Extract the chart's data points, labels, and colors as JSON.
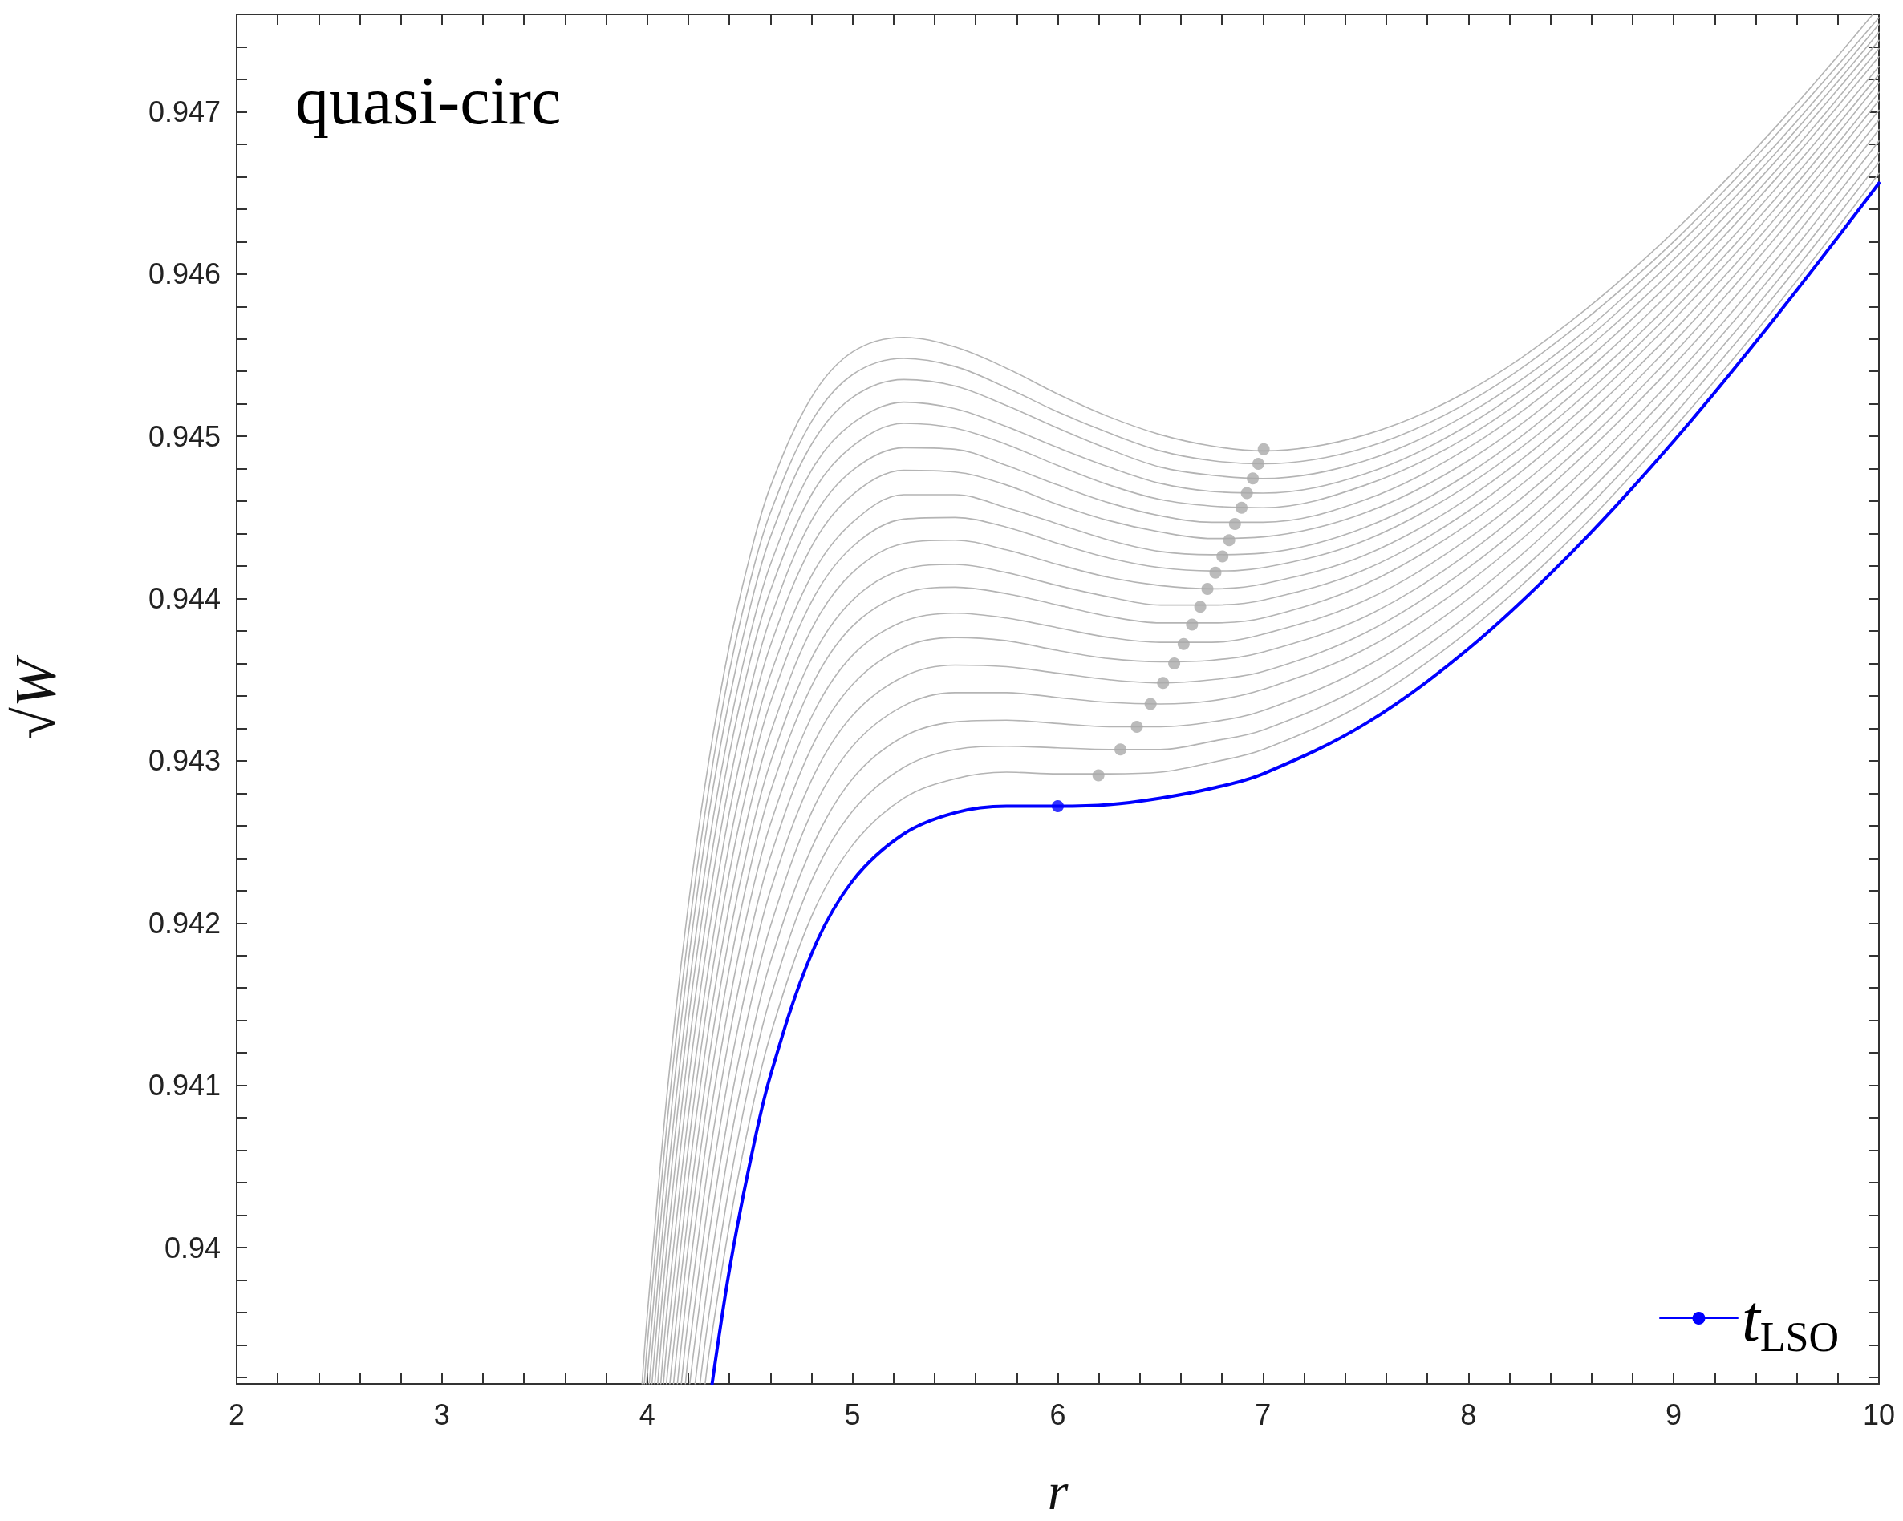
{
  "chart_data": {
    "type": "line",
    "title": "quasi-circ",
    "xlabel": "r",
    "ylabel": "√W",
    "grid": false,
    "legend": "bottom right",
    "marker": "none",
    "line_style": "solid",
    "xlim": [
      2,
      10
    ],
    "xticks": [
      2,
      {
        "value": 2.2,
        "label": null
      },
      {
        "value": 2.4,
        "label": null
      },
      {
        "value": 2.6,
        "label": null
      },
      {
        "value": 2.8,
        "label": null
      },
      3,
      {
        "value": 3.2,
        "label": null
      },
      {
        "value": 3.4,
        "label": null
      },
      {
        "value": 3.6,
        "label": null
      },
      {
        "value": 3.8,
        "label": null
      },
      4,
      {
        "value": 4.2,
        "label": null
      },
      {
        "value": 4.4,
        "label": null
      },
      {
        "value": 4.6,
        "label": null
      },
      {
        "value": 4.8,
        "label": null
      },
      5,
      {
        "value": 5.2,
        "label": null
      },
      {
        "value": 5.4,
        "label": null
      },
      {
        "value": 5.6,
        "label": null
      },
      {
        "value": 5.8,
        "label": null
      },
      6,
      {
        "value": 6.2,
        "label": null
      },
      {
        "value": 6.4,
        "label": null
      },
      {
        "value": 6.6,
        "label": null
      },
      {
        "value": 6.8,
        "label": null
      },
      7,
      {
        "value": 7.2,
        "label": null
      },
      {
        "value": 7.4,
        "label": null
      },
      {
        "value": 7.6,
        "label": null
      },
      {
        "value": 7.8,
        "label": null
      },
      8,
      {
        "value": 8.2,
        "label": null
      },
      {
        "value": 8.4,
        "label": null
      },
      {
        "value": 8.6,
        "label": null
      },
      {
        "value": 8.8,
        "label": null
      },
      9,
      {
        "value": 9.2,
        "label": null
      },
      {
        "value": 9.4,
        "label": null
      },
      {
        "value": 9.6,
        "label": null
      },
      {
        "value": 9.8,
        "label": null
      },
      10
    ],
    "ylim": [
      0.93916,
      0.9476
    ],
    "yticks": [
      {
        "value": 0.9392,
        "label": null
      },
      {
        "value": 0.9394,
        "label": null
      },
      {
        "value": 0.9396,
        "label": null
      },
      {
        "value": 0.9398,
        "label": null
      },
      0.94,
      {
        "value": 0.9402,
        "label": null
      },
      {
        "value": 0.9404,
        "label": null
      },
      {
        "value": 0.9406,
        "label": null
      },
      {
        "value": 0.9408,
        "label": null
      },
      0.941,
      {
        "value": 0.9412,
        "label": null
      },
      {
        "value": 0.9414,
        "label": null
      },
      {
        "value": 0.9416,
        "label": null
      },
      {
        "value": 0.9418,
        "label": null
      },
      0.942,
      {
        "value": 0.9422,
        "label": null
      },
      {
        "value": 0.9424,
        "label": null
      },
      {
        "value": 0.9426,
        "label": null
      },
      {
        "value": 0.9428,
        "label": null
      },
      0.943,
      {
        "value": 0.9432,
        "label": null
      },
      {
        "value": 0.9434,
        "label": null
      },
      {
        "value": 0.9436,
        "label": null
      },
      {
        "value": 0.9438,
        "label": null
      },
      0.944,
      {
        "value": 0.9442,
        "label": null
      },
      {
        "value": 0.9444,
        "label": null
      },
      {
        "value": 0.9446,
        "label": null
      },
      {
        "value": 0.9448,
        "label": null
      },
      0.945,
      {
        "value": 0.9452,
        "label": null
      },
      {
        "value": 0.9454,
        "label": null
      },
      {
        "value": 0.9456,
        "label": null
      },
      {
        "value": 0.9458,
        "label": null
      },
      0.946,
      {
        "value": 0.9462,
        "label": null
      },
      {
        "value": 0.9464,
        "label": null
      },
      {
        "value": 0.9466,
        "label": null
      },
      {
        "value": 0.9468,
        "label": null
      },
      0.947,
      {
        "value": 0.9472,
        "label": null
      },
      {
        "value": 0.9474,
        "label": null
      }
    ],
    "series": [
      {
        "color": "#b4b4b4",
        "x": [
          4.282,
          4.3,
          4.4,
          4.5,
          4.6,
          4.8,
          5.0,
          5.25,
          5.5,
          5.75,
          6.0,
          6.25,
          6.5,
          6.75,
          7.0,
          7.5,
          8.0,
          8.5,
          9.0,
          9.5,
          10
        ],
        "values": [
          0.93916,
          0.93934,
          0.94014,
          0.94079,
          0.94131,
          0.94204,
          0.94248,
          0.94277,
          0.94289,
          0.94293,
          0.94292,
          0.94292,
          0.94293,
          0.94299,
          0.94307,
          0.94336,
          0.9438,
          0.94437,
          0.94505,
          0.9458,
          0.94662
        ]
      },
      {
        "color": "#b4b4b4",
        "x": [
          4.257,
          4.3,
          4.4,
          4.5,
          4.6,
          4.8,
          5.0,
          5.25,
          5.5,
          5.75,
          6.0,
          6.25,
          6.5,
          6.75,
          7.0,
          7.5,
          8.0,
          8.5,
          9.0,
          9.5,
          10
        ],
        "values": [
          0.93916,
          0.93958,
          0.94038,
          0.94103,
          0.94154,
          0.94226,
          0.94269,
          0.94296,
          0.94307,
          0.94309,
          0.94308,
          0.94307,
          0.94307,
          0.94312,
          0.94319,
          0.94347,
          0.9439,
          0.94446,
          0.94513,
          0.94588,
          0.94669
        ]
      },
      {
        "color": "#b4b4b4",
        "x": [
          4.233,
          4.3,
          4.4,
          4.5,
          4.6,
          4.8,
          5.0,
          5.25,
          5.5,
          5.75,
          6.0,
          6.25,
          6.5,
          6.75,
          7.0,
          7.5,
          8.0,
          8.5,
          9.0,
          9.5,
          10
        ],
        "values": [
          0.93916,
          0.93982,
          0.94062,
          0.94125,
          0.94176,
          0.94246,
          0.94289,
          0.94315,
          0.94324,
          0.94325,
          0.94323,
          0.94321,
          0.94321,
          0.94324,
          0.94331,
          0.94358,
          0.944,
          0.94455,
          0.94521,
          0.94595,
          0.94675
        ]
      },
      {
        "color": "#b4b4b4",
        "x": [
          4.207,
          4.3,
          4.4,
          4.5,
          4.6,
          4.8,
          5.0,
          5.25,
          5.5,
          5.75,
          6.0,
          6.25,
          6.5,
          6.75,
          7.0,
          7.5,
          8.0,
          8.5,
          9.0,
          9.5,
          10
        ],
        "values": [
          0.93916,
          0.94007,
          0.94085,
          0.94148,
          0.94198,
          0.94268,
          0.94309,
          0.94334,
          0.94342,
          0.94342,
          0.94339,
          0.94336,
          0.94335,
          0.94337,
          0.94344,
          0.94369,
          0.9441,
          0.94464,
          0.94529,
          0.94602,
          0.94682
        ]
      },
      {
        "color": "#b4b4b4",
        "x": [
          4.186,
          4.2,
          4.3,
          4.4,
          4.5,
          4.6,
          4.8,
          5.0,
          5.25,
          5.5,
          5.75,
          6.0,
          6.25,
          6.5,
          6.75,
          7.0,
          7.5,
          8.0,
          8.5,
          9.0,
          9.5,
          10
        ],
        "values": [
          0.93916,
          0.93933,
          0.9403,
          0.94108,
          0.9417,
          0.9422,
          0.94288,
          0.94328,
          0.94352,
          0.94359,
          0.94358,
          0.94354,
          0.9435,
          0.94348,
          0.9435,
          0.94355,
          0.94379,
          0.94419,
          0.94472,
          0.94536,
          0.94609,
          0.94689
        ]
      },
      {
        "color": "#b4b4b4",
        "x": [
          4.166,
          4.2,
          4.3,
          4.4,
          4.5,
          4.6,
          4.8,
          5.0,
          5.25,
          5.5,
          5.75,
          6.0,
          6.25,
          6.5,
          6.75,
          7.0,
          7.5,
          8.0,
          8.5,
          9.0,
          9.5,
          10
        ],
        "values": [
          0.93916,
          0.93956,
          0.94053,
          0.9413,
          0.94192,
          0.94241,
          0.94308,
          0.94347,
          0.9437,
          0.94376,
          0.94374,
          0.94368,
          0.94363,
          0.94361,
          0.94362,
          0.94367,
          0.94389,
          0.94428,
          0.94481,
          0.94544,
          0.94616,
          0.94695
        ]
      },
      {
        "color": "#b4b4b4",
        "x": [
          4.147,
          4.2,
          4.3,
          4.4,
          4.5,
          4.6,
          4.8,
          5.0,
          5.25,
          5.5,
          5.75,
          6.0,
          6.25,
          6.5,
          6.75,
          7.0,
          7.5,
          8.0,
          8.5,
          9.0,
          9.5,
          10
        ],
        "values": [
          0.93916,
          0.93979,
          0.94075,
          0.94151,
          0.94213,
          0.94261,
          0.94327,
          0.94365,
          0.94386,
          0.94391,
          0.94388,
          0.94382,
          0.94376,
          0.94373,
          0.94373,
          0.94378,
          0.94399,
          0.94437,
          0.94488,
          0.94551,
          0.94623,
          0.94701
        ]
      },
      {
        "color": "#b4b4b4",
        "x": [
          4.128,
          4.2,
          4.3,
          4.4,
          4.5,
          4.6,
          4.8,
          5.0,
          5.25,
          5.5,
          5.75,
          6.0,
          6.25,
          6.5,
          6.75,
          7.0,
          7.5,
          8.0,
          8.5,
          9.0,
          9.5,
          10
        ],
        "values": [
          0.93916,
          0.94001,
          0.94096,
          0.94172,
          0.94233,
          0.94281,
          0.94346,
          0.94383,
          0.94403,
          0.94407,
          0.94403,
          0.94396,
          0.94389,
          0.94385,
          0.94385,
          0.94388,
          0.94409,
          0.94446,
          0.94496,
          0.94558,
          0.94629,
          0.94707
        ]
      },
      {
        "color": "#b4b4b4",
        "x": [
          4.11,
          4.2,
          4.3,
          4.4,
          4.5,
          4.6,
          4.8,
          5.0,
          5.25,
          5.5,
          5.75,
          6.0,
          6.25,
          6.5,
          6.75,
          7.0,
          7.5,
          8.0,
          8.5,
          9.0,
          9.5,
          10
        ],
        "values": [
          0.93916,
          0.94021,
          0.94116,
          0.94192,
          0.94252,
          0.94299,
          0.94363,
          0.94399,
          0.94418,
          0.94421,
          0.94416,
          0.94408,
          0.94401,
          0.94396,
          0.94396,
          0.94399,
          0.94418,
          0.94454,
          0.94504,
          0.94565,
          0.94635,
          0.94712
        ]
      },
      {
        "color": "#b4b4b4",
        "x": [
          4.094,
          4.1,
          4.2,
          4.3,
          4.4,
          4.5,
          4.6,
          4.8,
          5.0,
          5.25,
          5.5,
          5.75,
          6.0,
          6.25,
          6.5,
          6.75,
          7.0,
          7.5,
          8.0,
          8.5,
          9.0,
          9.5,
          10
        ],
        "values": [
          0.93916,
          0.93925,
          0.94042,
          0.94136,
          0.94211,
          0.94271,
          0.94317,
          0.94381,
          0.94416,
          0.94434,
          0.94436,
          0.9443,
          0.94421,
          0.94413,
          0.94408,
          0.94406,
          0.94409,
          0.94427,
          0.94462,
          0.94511,
          0.94572,
          0.94641,
          0.94718
        ]
      },
      {
        "color": "#b4b4b4",
        "x": [
          4.079,
          4.1,
          4.2,
          4.3,
          4.4,
          4.5,
          4.6,
          4.8,
          5.0,
          5.25,
          5.5,
          5.75,
          6.0,
          6.25,
          6.5,
          6.75,
          7.0,
          7.5,
          8.0,
          8.5,
          9.0,
          9.5,
          10
        ],
        "values": [
          0.93916,
          0.93946,
          0.94062,
          0.94156,
          0.94231,
          0.9429,
          0.94336,
          0.94398,
          0.94432,
          0.94449,
          0.9445,
          0.94444,
          0.94434,
          0.94425,
          0.94419,
          0.94417,
          0.94419,
          0.94436,
          0.9447,
          0.94518,
          0.94578,
          0.94647,
          0.94723
        ]
      },
      {
        "color": "#b4b4b4",
        "x": [
          4.066,
          4.1,
          4.2,
          4.3,
          4.4,
          4.5,
          4.6,
          4.8,
          5.0,
          5.25,
          5.5,
          5.75,
          6.0,
          6.25,
          6.5,
          6.75,
          7.0,
          7.5,
          8.0,
          8.5,
          9.0,
          9.5,
          10
        ],
        "values": [
          0.93916,
          0.93966,
          0.94081,
          0.94174,
          0.94249,
          0.94307,
          0.94353,
          0.94414,
          0.94447,
          0.94464,
          0.94464,
          0.94456,
          0.94446,
          0.94436,
          0.94429,
          0.94427,
          0.94428,
          0.94444,
          0.94477,
          0.94525,
          0.94584,
          0.94653,
          0.94728
        ]
      },
      {
        "color": "#b4b4b4",
        "x": [
          4.051,
          4.1,
          4.2,
          4.3,
          4.4,
          4.5,
          4.6,
          4.8,
          5.0,
          5.25,
          5.5,
          5.75,
          6.0,
          6.25,
          6.5,
          6.75,
          7.0,
          7.5,
          8.0,
          8.5,
          9.0,
          9.5,
          10
        ],
        "values": [
          0.93916,
          0.93987,
          0.94102,
          0.94194,
          0.94268,
          0.94326,
          0.94371,
          0.94432,
          0.94464,
          0.94479,
          0.94478,
          0.9447,
          0.94458,
          0.94448,
          0.94441,
          0.94437,
          0.94438,
          0.94453,
          0.94485,
          0.94532,
          0.94591,
          0.94659,
          0.94734
        ]
      },
      {
        "color": "#b4b4b4",
        "x": [
          4.037,
          4.1,
          4.2,
          4.3,
          4.4,
          4.5,
          4.6,
          4.8,
          5.0,
          5.25,
          5.5,
          5.75,
          6.0,
          6.25,
          6.5,
          6.75,
          7.0,
          7.5,
          8.0,
          8.5,
          9.0,
          9.5,
          10
        ],
        "values": [
          0.93916,
          0.94006,
          0.94121,
          0.94213,
          0.94286,
          0.94343,
          0.94388,
          0.94448,
          0.94479,
          0.94493,
          0.94492,
          0.94482,
          0.9447,
          0.94459,
          0.94451,
          0.94447,
          0.94447,
          0.94461,
          0.94493,
          0.94539,
          0.94597,
          0.94664,
          0.94739
        ]
      },
      {
        "color": "#b4b4b4",
        "x": [
          4.023,
          4.1,
          4.2,
          4.3,
          4.4,
          4.5,
          4.6,
          4.8,
          5.0,
          5.25,
          5.5,
          5.75,
          6.0,
          6.25,
          6.5,
          6.75,
          7.0,
          7.5,
          8.0,
          8.5,
          9.0,
          9.5,
          10
        ],
        "values": [
          0.93916,
          0.94026,
          0.9414,
          0.94231,
          0.94304,
          0.94361,
          0.94405,
          0.94464,
          0.94494,
          0.94508,
          0.94505,
          0.94495,
          0.94482,
          0.9447,
          0.94461,
          0.94457,
          0.94456,
          0.9447,
          0.945,
          0.94546,
          0.94603,
          0.9467,
          0.94744
        ]
      },
      {
        "color": "#b4b4b4",
        "x": [
          4.01,
          4.1,
          4.2,
          4.3,
          4.4,
          4.5,
          4.6,
          4.8,
          5.0,
          5.25,
          5.5,
          5.75,
          6.0,
          6.25,
          6.5,
          6.75,
          7.0,
          7.5,
          8.0,
          8.5,
          9.0,
          9.5,
          10
        ],
        "values": [
          0.93916,
          0.94043,
          0.94157,
          0.94248,
          0.9432,
          0.94377,
          0.94421,
          0.94479,
          0.94508,
          0.94521,
          0.94517,
          0.94506,
          0.94493,
          0.94481,
          0.94471,
          0.94466,
          0.94465,
          0.94477,
          0.94507,
          0.94552,
          0.94609,
          0.94675,
          0.94749
        ]
      },
      {
        "color": "#b4b4b4",
        "x": [
          3.997,
          4.0,
          4.1,
          4.2,
          4.3,
          4.4,
          4.5,
          4.6,
          4.8,
          5.0,
          5.25,
          5.5,
          5.75,
          6.0,
          6.25,
          6.5,
          6.75,
          7.0,
          7.5,
          8.0,
          8.5,
          9.0,
          9.5,
          10
        ],
        "values": [
          0.93916,
          0.93921,
          0.94063,
          0.94176,
          0.94267,
          0.94338,
          0.94394,
          0.94438,
          0.94495,
          0.94524,
          0.94535,
          0.94531,
          0.94519,
          0.94505,
          0.94492,
          0.94481,
          0.94476,
          0.94474,
          0.94485,
          0.94514,
          0.94558,
          0.94615,
          0.9468,
          0.94754
        ]
      },
      {
        "color": "#b4b4b4",
        "x": [
          3.986,
          4.0,
          4.1,
          4.2,
          4.3,
          4.4,
          4.5,
          4.6,
          4.8,
          5.0,
          5.25,
          5.5,
          5.75,
          6.0,
          6.25,
          6.5,
          6.75,
          7.0,
          7.5,
          8.0,
          8.5,
          9.0,
          9.5,
          10
        ],
        "values": [
          0.93916,
          0.9394,
          0.94081,
          0.94193,
          0.94283,
          0.94355,
          0.9441,
          0.94453,
          0.94509,
          0.94538,
          0.94548,
          0.94543,
          0.9453,
          0.94515,
          0.94502,
          0.94491,
          0.94485,
          0.94483,
          0.94493,
          0.94521,
          0.94565,
          0.9462,
          0.94686,
          0.94758
        ]
      },
      {
        "color": "#b4b4b4",
        "x": [
          3.975,
          4.0,
          4.1,
          4.2,
          4.3,
          4.4,
          4.5,
          4.6,
          4.8,
          5.0,
          5.25,
          5.5,
          5.75,
          6.0,
          6.25,
          6.5,
          6.75,
          7.0,
          7.5,
          8.0,
          8.5,
          9.0,
          9.5,
          9.97
        ],
        "values": [
          0.93916,
          0.93958,
          0.94099,
          0.94211,
          0.943,
          0.94371,
          0.94426,
          0.94469,
          0.94524,
          0.94552,
          0.94561,
          0.94555,
          0.94542,
          0.94526,
          0.94512,
          0.94501,
          0.94494,
          0.94491,
          0.94501,
          0.94528,
          0.94571,
          0.94626,
          0.94691,
          0.9476
        ]
      },
      {
        "type": "scatter",
        "marker": "circle",
        "color": "#aaaaaa",
        "x": [
          6.198,
          6.305,
          6.385,
          6.452,
          6.513,
          6.567,
          6.613,
          6.654,
          6.694,
          6.729,
          6.768,
          6.802,
          6.835,
          6.863,
          6.895,
          6.921,
          6.95,
          6.977,
          7.003
        ],
        "values": [
          0.94291,
          0.94307,
          0.94321,
          0.94335,
          0.94348,
          0.9436,
          0.94372,
          0.94384,
          0.94395,
          0.94406,
          0.94416,
          0.94426,
          0.94436,
          0.94446,
          0.94456,
          0.94465,
          0.94474,
          0.94483,
          0.94492
        ]
      },
      {
        "name": "t$_{LSO}$",
        "color": "#0000ff",
        "x": [
          4.316,
          4.4,
          4.5,
          4.6,
          4.8,
          5.0,
          5.25,
          5.5,
          5.75,
          6.0,
          6.25,
          6.5,
          6.75,
          7.0,
          7.5,
          8.0,
          8.5,
          9.0,
          9.5,
          10
        ],
        "values": [
          0.93916,
          0.93986,
          0.94052,
          0.94106,
          0.94181,
          0.94226,
          0.94255,
          0.94268,
          0.94272,
          0.94272,
          0.94273,
          0.94277,
          0.94283,
          0.94292,
          0.94323,
          0.94369,
          0.94428,
          0.94497,
          0.94574,
          0.94656
        ]
      },
      {
        "type": "scatter",
        "marker": "circle",
        "color": "#0000ff",
        "x": [
          6.0
        ],
        "values": [
          0.94272
        ]
      }
    ]
  }
}
